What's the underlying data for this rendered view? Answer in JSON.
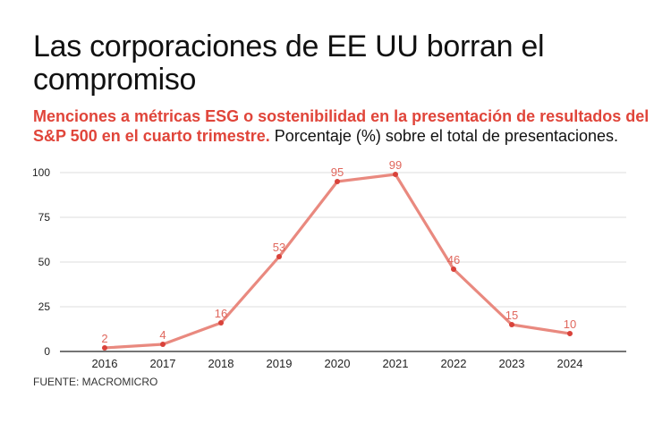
{
  "header": {
    "title": "Las corporaciones de EE UU borran el compromiso",
    "subtitle_highlight": "Menciones a métricas ESG o sostenibilidad en la presentación de resultados del S&P 500 en el cuarto trimestre.",
    "subtitle_rest": " Porcentaje (%) sobre el total de presentaciones."
  },
  "source": "FUENTE: MACROMICRO",
  "chart_data": {
    "type": "line",
    "title": "Las corporaciones de EE UU borran el compromiso",
    "subtitle": "Menciones a métricas ESG o sostenibilidad en la presentación de resultados del S&P 500 en el cuarto trimestre. Porcentaje (%) sobre el total de presentaciones.",
    "xlabel": "",
    "ylabel": "",
    "categories": [
      "2016",
      "2017",
      "2018",
      "2019",
      "2020",
      "2021",
      "2022",
      "2023",
      "2024"
    ],
    "series": [
      {
        "values": [
          2,
          4,
          16,
          53,
          95,
          99,
          46,
          15,
          10
        ]
      }
    ],
    "ylim": [
      0,
      100
    ],
    "yticks": [
      0,
      25,
      50,
      75,
      100
    ],
    "grid": true,
    "data_labels": true,
    "colors": {
      "line": "#e9897f",
      "point": "#d9423a",
      "label": "#e0675d",
      "accent": "#e0453a",
      "grid": "#dddddd"
    }
  }
}
